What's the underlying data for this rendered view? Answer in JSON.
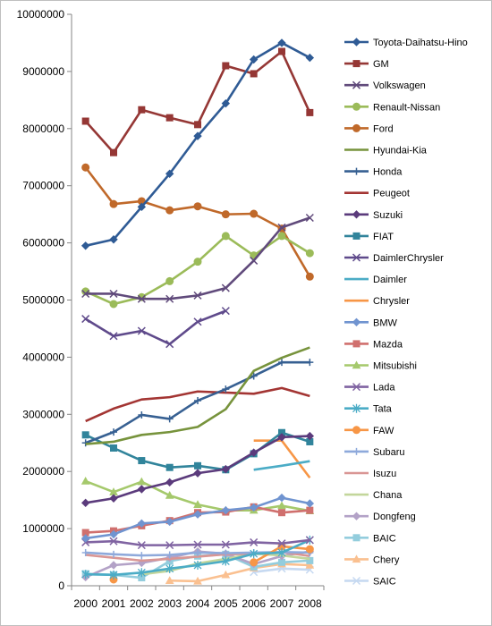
{
  "chart_data": {
    "type": "line",
    "title": "",
    "xlabel": "",
    "ylabel": "",
    "x": [
      "2000",
      "2001",
      "2002",
      "2003",
      "2004",
      "2005",
      "2006",
      "2007",
      "2008"
    ],
    "y_ticks": [
      "0",
      "1000000",
      "2000000",
      "3000000",
      "4000000",
      "5000000",
      "6000000",
      "7000000",
      "8000000",
      "9000000",
      "10000000"
    ],
    "ylim": [
      0,
      10000000
    ],
    "grid": false,
    "legend_position": "right",
    "series": [
      {
        "name": "Toyota-Daihatsu-Hino",
        "color": "#2F5B95",
        "marker": "diamond",
        "values": [
          5950000,
          6060000,
          6630000,
          7210000,
          7870000,
          8440000,
          9210000,
          9500000,
          9240000
        ]
      },
      {
        "name": "GM",
        "color": "#953735",
        "marker": "square",
        "values": [
          8130000,
          7580000,
          8330000,
          8190000,
          8070000,
          9100000,
          8960000,
          9350000,
          8280000
        ]
      },
      {
        "name": "Volkswagen",
        "color": "#604A7B",
        "marker": "x",
        "values": [
          5110000,
          5110000,
          5020000,
          5020000,
          5080000,
          5210000,
          5690000,
          6270000,
          6440000
        ]
      },
      {
        "name": "Renault-Nissan",
        "color": "#9BBB59",
        "marker": "circle",
        "values": [
          5150000,
          4930000,
          5050000,
          5330000,
          5670000,
          6120000,
          5780000,
          6120000,
          5820000
        ]
      },
      {
        "name": "Ford",
        "color": "#C0692A",
        "marker": "circle",
        "values": [
          7320000,
          6680000,
          6730000,
          6570000,
          6640000,
          6500000,
          6510000,
          6250000,
          5410000
        ]
      },
      {
        "name": "Hyundai-Kia",
        "color": "#77933C",
        "marker": "none",
        "values": [
          2480000,
          2520000,
          2640000,
          2690000,
          2780000,
          3090000,
          3760000,
          3990000,
          4170000
        ]
      },
      {
        "name": "Honda",
        "color": "#376092",
        "marker": "plus",
        "values": [
          2500000,
          2690000,
          2990000,
          2920000,
          3240000,
          3440000,
          3670000,
          3910000,
          3910000
        ]
      },
      {
        "name": "Peugeot",
        "color": "#A33533",
        "marker": "none",
        "values": [
          2880000,
          3100000,
          3260000,
          3300000,
          3400000,
          3380000,
          3360000,
          3460000,
          3320000
        ]
      },
      {
        "name": "Suzuki",
        "color": "#5B3B7C",
        "marker": "diamond",
        "values": [
          1450000,
          1530000,
          1690000,
          1810000,
          1970000,
          2040000,
          2330000,
          2600000,
          2620000
        ]
      },
      {
        "name": "FIAT",
        "color": "#31849B",
        "marker": "square",
        "values": [
          2640000,
          2410000,
          2190000,
          2070000,
          2100000,
          2030000,
          2310000,
          2680000,
          2520000
        ]
      },
      {
        "name": "DaimlerChrysler",
        "color": "#5F4A8B",
        "marker": "x",
        "values": [
          4670000,
          4370000,
          4460000,
          4230000,
          4620000,
          4810000,
          null,
          null,
          null
        ]
      },
      {
        "name": "Daimler",
        "color": "#4BACC6",
        "marker": "none",
        "values": [
          null,
          null,
          null,
          null,
          null,
          null,
          2030000,
          2100000,
          2180000
        ]
      },
      {
        "name": "Chrysler",
        "color": "#F79646",
        "marker": "none",
        "values": [
          null,
          null,
          null,
          null,
          null,
          null,
          2540000,
          2540000,
          1890000
        ]
      },
      {
        "name": "BMW",
        "color": "#7094D0",
        "marker": "diamond",
        "values": [
          830000,
          900000,
          1090000,
          1120000,
          1250000,
          1320000,
          1370000,
          1540000,
          1440000
        ]
      },
      {
        "name": "Mazda",
        "color": "#D0706E",
        "marker": "square",
        "values": [
          930000,
          960000,
          1050000,
          1140000,
          1280000,
          1290000,
          1380000,
          1280000,
          1320000
        ]
      },
      {
        "name": "Mitsubishi",
        "color": "#A5C96C",
        "marker": "triangle",
        "values": [
          1830000,
          1640000,
          1820000,
          1580000,
          1420000,
          1320000,
          1320000,
          1400000,
          1310000
        ]
      },
      {
        "name": "Lada",
        "color": "#8064A2",
        "marker": "x",
        "values": [
          760000,
          780000,
          710000,
          710000,
          720000,
          720000,
          760000,
          740000,
          800000
        ]
      },
      {
        "name": "Tata",
        "color": "#4BACC6",
        "marker": "star",
        "values": [
          200000,
          190000,
          230000,
          300000,
          360000,
          430000,
          560000,
          580000,
          800000
        ]
      },
      {
        "name": "FAW",
        "color": "#F79646",
        "marker": "circle",
        "values": [
          null,
          110000,
          null,
          null,
          null,
          null,
          410000,
          690000,
          640000
        ]
      },
      {
        "name": "Subaru",
        "color": "#8EA9DB",
        "marker": "plus",
        "values": [
          580000,
          550000,
          530000,
          540000,
          580000,
          570000,
          580000,
          590000,
          580000
        ]
      },
      {
        "name": "Isuzu",
        "color": "#D99694",
        "marker": "none",
        "values": [
          540000,
          490000,
          440000,
          470000,
          510000,
          550000,
          560000,
          590000,
          520000
        ]
      },
      {
        "name": "Chana",
        "color": "#C3D69B",
        "marker": "none",
        "values": [
          null,
          null,
          200000,
          260000,
          390000,
          470000,
          560000,
          530000,
          470000
        ]
      },
      {
        "name": "Dongfeng",
        "color": "#B3A2C7",
        "marker": "diamond",
        "values": [
          150000,
          360000,
          400000,
          490000,
          600000,
          560000,
          380000,
          520000,
          600000
        ]
      },
      {
        "name": "BAIC",
        "color": "#93CDDD",
        "marker": "square",
        "values": [
          210000,
          190000,
          140000,
          430000,
          520000,
          550000,
          330000,
          410000,
          440000
        ]
      },
      {
        "name": "Chery",
        "color": "#FAC090",
        "marker": "triangle",
        "values": [
          null,
          null,
          null,
          90000,
          80000,
          190000,
          310000,
          380000,
          360000
        ]
      },
      {
        "name": "SAIC",
        "color": "#C6D9F1",
        "marker": "x",
        "values": [
          null,
          null,
          null,
          null,
          null,
          null,
          240000,
          300000,
          280000
        ]
      }
    ]
  }
}
